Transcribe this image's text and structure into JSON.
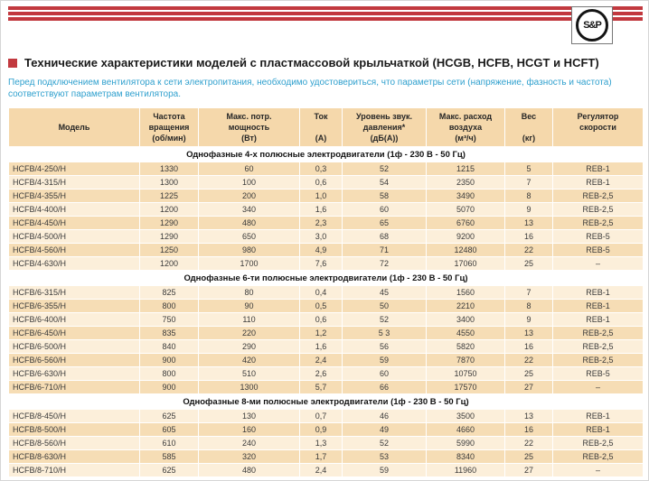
{
  "header": {
    "logo_text": "S&P",
    "title": "Технические характеристики моделей с пластмассовой крыльчаткой (HCGB, HCFB, HCGT и HCFT)",
    "note": "Перед подключением вентилятора к сети электропитания, необходимо удостовериться, что параметры сети (напряжение, фазность и частота) соответствуют параметрам вентилятора."
  },
  "colors": {
    "accent_red": "#C2393F",
    "note_blue": "#2FA0CE",
    "row_dark": "#F6DDB5",
    "row_light": "#FCEFDA",
    "header_bg": "#F5D8AB"
  },
  "table": {
    "columns": [
      {
        "lines": [
          "Модель"
        ],
        "valign": "middle"
      },
      {
        "lines": [
          "Частота",
          "вращения",
          "(об/мин)"
        ]
      },
      {
        "lines": [
          "Макс. потр.",
          "мощность",
          "(Вт)"
        ]
      },
      {
        "lines": [
          "Ток",
          "",
          "(А)"
        ]
      },
      {
        "lines": [
          "Уровень звук.",
          "давления*",
          "(дБ(А))"
        ]
      },
      {
        "lines": [
          "Макс. расход",
          "воздуха",
          "(м³/ч)"
        ]
      },
      {
        "lines": [
          "Вес",
          "",
          "(кг)"
        ]
      },
      {
        "lines": [
          "Регулятор",
          "скорости"
        ]
      }
    ],
    "sections": [
      {
        "title": "Однофазные 4-х полюсные электродвигатели (1ф - 230 В - 50 Гц)",
        "first_shade": "dark",
        "rows": [
          [
            "HCFB/4-250/H",
            "1330",
            "60",
            "0,3",
            "52",
            "1215",
            "5",
            "REB-1"
          ],
          [
            "HCFB/4-315/H",
            "1300",
            "100",
            "0,6",
            "54",
            "2350",
            "7",
            "REB-1"
          ],
          [
            "HCFB/4-355/H",
            "1225",
            "200",
            "1,0",
            "58",
            "3490",
            "8",
            "REB-2,5"
          ],
          [
            "HCFB/4-400/H",
            "1200",
            "340",
            "1,6",
            "60",
            "5070",
            "9",
            "REB-2,5"
          ],
          [
            "HCFB/4-450/H",
            "1290",
            "480",
            "2,3",
            "65",
            "6760",
            "13",
            "REB-2,5"
          ],
          [
            "HCFB/4-500/H",
            "1290",
            "650",
            "3,0",
            "68",
            "9200",
            "16",
            "REB-5"
          ],
          [
            "HCFB/4-560/H",
            "1250",
            "980",
            "4,9",
            "71",
            "12480",
            "22",
            "REB-5"
          ],
          [
            "HCFB/4-630/H",
            "1200",
            "1700",
            "7,6",
            "72",
            "17060",
            "25",
            "–"
          ]
        ]
      },
      {
        "title": "Однофазные 6-ти полюсные электродвигатели (1ф - 230 В - 50 Гц)",
        "first_shade": "light",
        "rows": [
          [
            "HCFB/6-315/H",
            "825",
            "80",
            "0,4",
            "45",
            "1560",
            "7",
            "REB-1"
          ],
          [
            "HCFB/6-355/H",
            "800",
            "90",
            "0,5",
            "50",
            "2210",
            "8",
            "REB-1"
          ],
          [
            "HCFB/6-400/H",
            "750",
            "110",
            "0,6",
            "52",
            "3400",
            "9",
            "REB-1"
          ],
          [
            "HCFB/6-450/H",
            "835",
            "220",
            "1,2",
            "5 3",
            "4550",
            "13",
            "REB-2,5"
          ],
          [
            "HCFB/6-500/H",
            "840",
            "290",
            "1,6",
            "56",
            "5820",
            "16",
            "REB-2,5"
          ],
          [
            "HCFB/6-560/H",
            "900",
            "420",
            "2,4",
            "59",
            "7870",
            "22",
            "REB-2,5"
          ],
          [
            "HCFB/6-630/H",
            "800",
            "510",
            "2,6",
            "60",
            "10750",
            "25",
            "REB-5"
          ],
          [
            "HCFB/6-710/H",
            "900",
            "1300",
            "5,7",
            "66",
            "17570",
            "27",
            "–"
          ]
        ]
      },
      {
        "title": "Однофазные 8-ми полюсные электродвигатели (1ф - 230 В - 50 Гц)",
        "first_shade": "light",
        "rows": [
          [
            "HCFB/8-450/H",
            "625",
            "130",
            "0,7",
            "46",
            "3500",
            "13",
            "REB-1"
          ],
          [
            "HCFB/8-500/H",
            "605",
            "160",
            "0,9",
            "49",
            "4660",
            "16",
            "REB-1"
          ],
          [
            "HCFB/8-560/H",
            "610",
            "240",
            "1,3",
            "52",
            "5990",
            "22",
            "REB-2,5"
          ],
          [
            "HCFB/8-630/H",
            "585",
            "320",
            "1,7",
            "53",
            "8340",
            "25",
            "REB-2,5"
          ],
          [
            "HCFB/8-710/H",
            "625",
            "480",
            "2,4",
            "59",
            "11960",
            "27",
            "–"
          ]
        ]
      }
    ]
  }
}
